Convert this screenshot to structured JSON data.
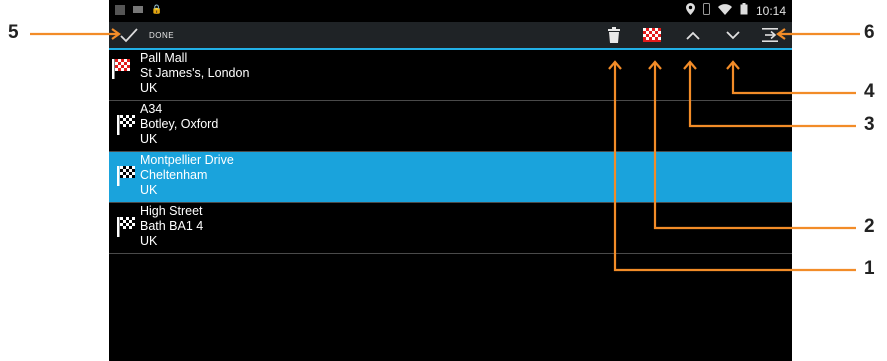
{
  "status_bar": {
    "time": "10:14"
  },
  "action_bar": {
    "done_label": "DONE",
    "icons": [
      "checkmark-icon",
      "trash-icon",
      "checkered-flag-icon",
      "chevron-up-icon",
      "chevron-down-icon",
      "insert-waypoint-icon"
    ],
    "accent": "#22b0e6",
    "flag_accent": "#e21b1b"
  },
  "destinations": [
    {
      "line1": "Pall Mall",
      "line2": "St James's, London",
      "line3": "UK",
      "flag": "red",
      "selected": false
    },
    {
      "line1": "A34",
      "line2": "Botley, Oxford",
      "line3": "UK",
      "flag": "white",
      "selected": false
    },
    {
      "line1": "Montpellier Drive",
      "line2": "Cheltenham",
      "line3": "UK",
      "flag": "white",
      "selected": true
    },
    {
      "line1": "High Street",
      "line2": "Bath BA1 4",
      "line3": "UK",
      "flag": "white",
      "selected": false
    }
  ],
  "callouts": [
    "1",
    "2",
    "3",
    "4",
    "5",
    "6"
  ],
  "selected_row_color": "#1aa3dc",
  "callout_color": "#f28c28"
}
